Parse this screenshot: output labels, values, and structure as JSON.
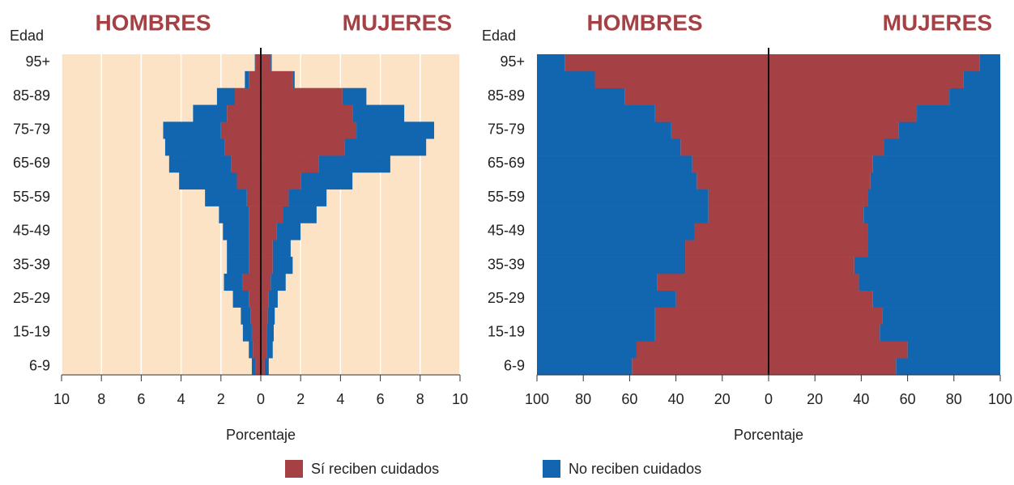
{
  "chart_data": [
    {
      "type": "pyramid",
      "left_title": "HOMBRES",
      "right_title": "MUJERES",
      "y_label": "Edad",
      "x_label": "Porcentaje",
      "categories": [
        "6-9",
        null,
        "15-19",
        null,
        "25-29",
        null,
        "35-39",
        null,
        "45-49",
        null,
        "55-59",
        null,
        "65-69",
        null,
        "75-79",
        null,
        "85-89",
        null,
        "95+"
      ],
      "xlim": [
        -10,
        10
      ],
      "xticks": [
        {
          "value": -10,
          "label": "10"
        },
        {
          "value": -8,
          "label": "8"
        },
        {
          "value": -6,
          "label": "6"
        },
        {
          "value": -4,
          "label": "4"
        },
        {
          "value": -2,
          "label": "2"
        },
        0,
        2,
        4,
        6,
        8,
        10
      ],
      "background": "#fce3c6",
      "grid": true,
      "series": [
        {
          "left_values": [
            0.25,
            0.4,
            0.45,
            0.5,
            0.6,
            0.9,
            0.6,
            0.6,
            0.6,
            0.6,
            0.7,
            1.2,
            1.5,
            1.8,
            2.0,
            1.7,
            1.3,
            0.6,
            0.25
          ],
          "right_values": [
            0.2,
            0.3,
            0.3,
            0.35,
            0.4,
            0.5,
            0.6,
            0.6,
            0.8,
            1.1,
            1.4,
            2.0,
            2.9,
            4.2,
            4.8,
            4.6,
            4.1,
            1.6,
            0.5
          ]
        },
        {
          "left_values": [
            0.2,
            0.2,
            0.45,
            0.5,
            0.8,
            0.95,
            1.1,
            1.1,
            1.3,
            1.5,
            2.1,
            2.9,
            3.1,
            3.0,
            2.9,
            1.7,
            0.9,
            0.2,
            0.05
          ],
          "right_values": [
            0.2,
            0.3,
            0.35,
            0.35,
            0.45,
            0.75,
            1.0,
            0.9,
            1.2,
            1.7,
            1.9,
            2.6,
            3.6,
            4.1,
            3.9,
            2.6,
            1.2,
            0.1,
            0.05
          ]
        }
      ]
    },
    {
      "type": "pyramid",
      "left_title": "HOMBRES",
      "right_title": "MUJERES",
      "y_label": "Edad",
      "x_label": "Porcentaje",
      "categories": [
        "6-9",
        null,
        "15-19",
        null,
        "25-29",
        null,
        "35-39",
        null,
        "45-49",
        null,
        "55-59",
        null,
        "65-69",
        null,
        "75-79",
        null,
        "85-89",
        null,
        "95+"
      ],
      "xlim": [
        -100,
        100
      ],
      "xticks": [
        {
          "value": -100,
          "label": "100"
        },
        {
          "value": -80,
          "label": "80"
        },
        {
          "value": -60,
          "label": "60"
        },
        {
          "value": -40,
          "label": "40"
        },
        {
          "value": -20,
          "label": "20"
        },
        0,
        20,
        40,
        60,
        80,
        100
      ],
      "grid": false,
      "series": [
        {
          "left_values": [
            59,
            57,
            49,
            49,
            40,
            48,
            36,
            36,
            32,
            26,
            26,
            31,
            33,
            38,
            42,
            49,
            62,
            75,
            88
          ],
          "right_values": [
            55,
            60,
            48,
            49,
            45,
            39,
            37,
            43,
            43,
            41,
            43,
            44,
            45,
            50,
            56,
            64,
            78,
            84,
            91
          ]
        },
        {
          "left_values": [
            41,
            43,
            51,
            51,
            60,
            52,
            64,
            64,
            68,
            74,
            74,
            69,
            67,
            62,
            58,
            51,
            38,
            25,
            12
          ],
          "right_values": [
            45,
            40,
            52,
            51,
            55,
            61,
            63,
            57,
            57,
            59,
            57,
            56,
            55,
            50,
            44,
            36,
            22,
            16,
            9
          ]
        }
      ]
    }
  ],
  "legend": [
    {
      "name": "Sí reciben cuidados",
      "color": "#a54145"
    },
    {
      "name": "No reciben cuidados",
      "color": "#1266b0"
    }
  ]
}
